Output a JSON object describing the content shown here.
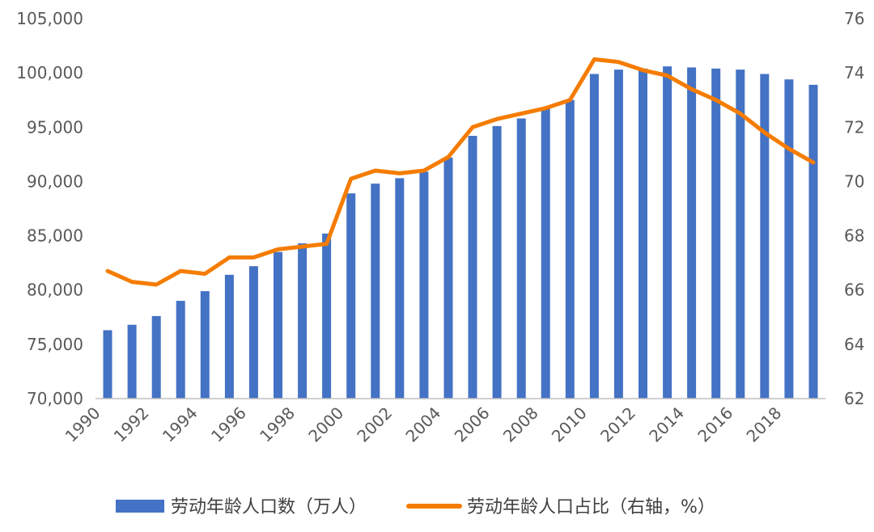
{
  "chart_data": {
    "type": "bar",
    "x": [
      1990,
      1991,
      1992,
      1993,
      1994,
      1995,
      1996,
      1997,
      1998,
      1999,
      2000,
      2001,
      2002,
      2003,
      2004,
      2005,
      2006,
      2007,
      2008,
      2009,
      2010,
      2011,
      2012,
      2013,
      2014,
      2015,
      2016,
      2017,
      2018,
      2019
    ],
    "x_tick_labels": [
      "1990",
      "1992",
      "1994",
      "1996",
      "1998",
      "2000",
      "2002",
      "2004",
      "2006",
      "2008",
      "2010",
      "2012",
      "2014",
      "2016",
      "2018"
    ],
    "series": [
      {
        "name": "劳动年龄人口数（万人）",
        "type": "bar",
        "axis": "left",
        "color": "#4472C4",
        "values": [
          76300,
          76800,
          77600,
          79000,
          79900,
          81400,
          82200,
          83500,
          84300,
          85200,
          88900,
          89800,
          90300,
          90900,
          92200,
          94200,
          95100,
          95800,
          96700,
          97500,
          99900,
          100300,
          100400,
          100600,
          100500,
          100400,
          100300,
          99900,
          99400,
          98900
        ]
      },
      {
        "name": "劳动年龄人口占比（右轴，%）",
        "type": "line",
        "axis": "right",
        "color": "#F57C00",
        "values": [
          66.7,
          66.3,
          66.2,
          66.7,
          66.6,
          67.2,
          67.2,
          67.5,
          67.6,
          67.7,
          70.1,
          70.4,
          70.3,
          70.4,
          70.9,
          72.0,
          72.3,
          72.5,
          72.7,
          73.0,
          74.5,
          74.4,
          74.1,
          73.9,
          73.4,
          73.0,
          72.5,
          71.8,
          71.2,
          70.7
        ]
      }
    ],
    "y_left": {
      "min": 70000,
      "max": 105000,
      "ticks": [
        "70,000",
        "75,000",
        "80,000",
        "85,000",
        "90,000",
        "95,000",
        "100,000",
        "105,000"
      ]
    },
    "y_right": {
      "min": 62,
      "max": 76,
      "ticks": [
        "62",
        "64",
        "66",
        "68",
        "70",
        "72",
        "74",
        "76"
      ]
    },
    "grid": false,
    "legend_position": "bottom"
  }
}
